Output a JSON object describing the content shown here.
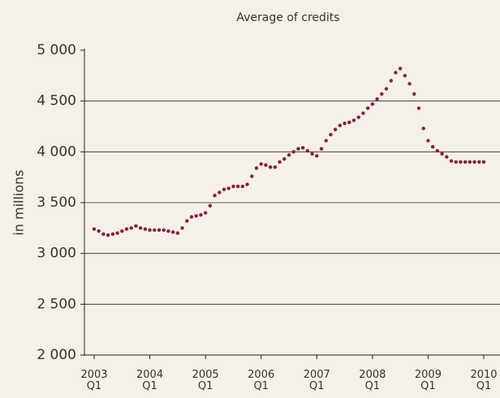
{
  "chart_data": {
    "type": "line",
    "title": "Average of credits",
    "y_label": "in millions",
    "categories": [
      "2003 Q1",
      null,
      null,
      null,
      null,
      null,
      null,
      null,
      null,
      null,
      null,
      null,
      "2004 Q1",
      null,
      null,
      null,
      null,
      null,
      null,
      null,
      null,
      null,
      null,
      null,
      "2005 Q1",
      null,
      null,
      null,
      null,
      null,
      null,
      null,
      null,
      null,
      null,
      null,
      "2006 Q1",
      null,
      null,
      null,
      null,
      null,
      null,
      null,
      null,
      null,
      null,
      null,
      "2007 Q1",
      null,
      null,
      null,
      null,
      null,
      null,
      null,
      null,
      null,
      null,
      null,
      "2008 Q1",
      null,
      null,
      null,
      null,
      null,
      null,
      null,
      null,
      null,
      null,
      null,
      "2009 Q1",
      null,
      null,
      null,
      null,
      null,
      null,
      null,
      null,
      null,
      null,
      null,
      "2010 Q1"
    ],
    "series": [
      {
        "color": "#8b1d3e",
        "values": [
          3240,
          3220,
          3190,
          3180,
          3190,
          3200,
          3220,
          3240,
          3250,
          3270,
          3250,
          3240,
          3230,
          3230,
          3230,
          3230,
          3220,
          3210,
          3200,
          3250,
          3320,
          3360,
          3370,
          3380,
          3400,
          3470,
          3570,
          3600,
          3630,
          3640,
          3660,
          3660,
          3660,
          3680,
          3760,
          3840,
          3880,
          3870,
          3850,
          3850,
          3900,
          3930,
          3970,
          4000,
          4030,
          4040,
          4010,
          3980,
          3960,
          4030,
          4110,
          4170,
          4220,
          4260,
          4280,
          4290,
          4310,
          4340,
          4380,
          4430,
          4470,
          4520,
          4570,
          4620,
          4700,
          4780,
          4820,
          4750,
          4670,
          4570,
          4430,
          4230,
          4110,
          4050,
          4010,
          3980,
          3950,
          3910,
          3900,
          3900,
          3900,
          3900,
          3900,
          3900,
          3900
        ]
      }
    ],
    "ylim": [
      2000,
      5000
    ],
    "yticks": [
      {
        "value": 2000,
        "label": "2 000"
      },
      {
        "value": 2500,
        "label": "2 500"
      },
      {
        "value": 3000,
        "label": "3 000"
      },
      {
        "value": 3500,
        "label": "3 500"
      },
      {
        "value": 4000,
        "label": "4 000"
      },
      {
        "value": 4500,
        "label": "4 500"
      },
      {
        "value": 5000,
        "label": "5 000"
      }
    ],
    "grid": true
  }
}
